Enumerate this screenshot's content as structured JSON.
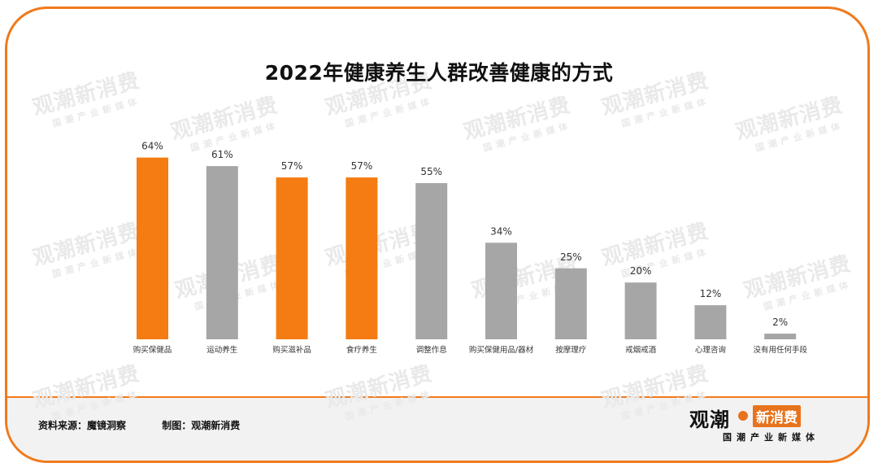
{
  "chart_data": {
    "type": "bar",
    "title": "2022年健康养生人群改善健康的方式",
    "categories": [
      "购买保健品",
      "运动养生",
      "购买滋补品",
      "食疗养生",
      "调整作息",
      "购买保健用品/器材",
      "按摩理疗",
      "戒烟戒酒",
      "心理咨询",
      "没有用任何手段"
    ],
    "values": [
      64,
      61,
      57,
      57,
      55,
      34,
      25,
      20,
      12,
      2
    ],
    "value_labels": [
      "64%",
      "61%",
      "57%",
      "57%",
      "55%",
      "34%",
      "25%",
      "20%",
      "12%",
      "2%"
    ],
    "highlight": [
      true,
      false,
      true,
      true,
      false,
      false,
      false,
      false,
      false,
      false
    ],
    "colors": {
      "highlight": "#f57c12",
      "default": "#a6a6a6"
    },
    "ylim": [
      0,
      100
    ],
    "grid": false
  },
  "footer": {
    "source": "资料来源：魔镜洞察",
    "maker": "制图：观潮新消费"
  },
  "logo": {
    "main_left": "观潮",
    "main_right": "新消费",
    "tagline": "国潮产业新媒体"
  },
  "watermark": {
    "text": "观潮新消费",
    "sub": "国潮产业新媒体"
  },
  "accent_color": "#f07a1c"
}
